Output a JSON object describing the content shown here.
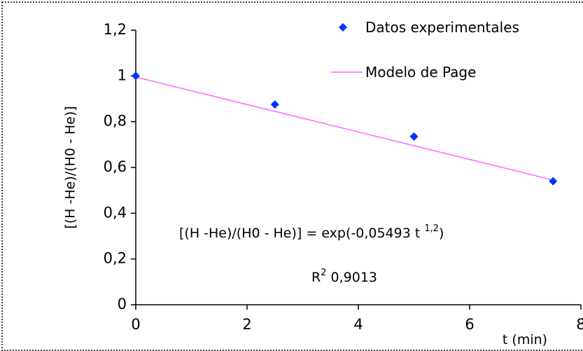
{
  "chart_data": {
    "type": "scatter",
    "xlabel": "t (min)",
    "ylabel": "[(H -He)/(H0 - He)]",
    "xlim": [
      0,
      8
    ],
    "ylim": [
      0,
      1.2
    ],
    "x_ticks": [
      "0",
      "2",
      "4",
      "6",
      "8"
    ],
    "y_ticks": [
      "0",
      "0,2",
      "0,4",
      "0,6",
      "0,8",
      "1",
      "1,2"
    ],
    "series": [
      {
        "name": "Datos experimentales",
        "kind": "scatter",
        "marker": "diamond",
        "color": "#0033ff",
        "x": [
          0,
          2.5,
          5,
          7.5
        ],
        "y": [
          1.0,
          0.875,
          0.735,
          0.54
        ]
      },
      {
        "name": "Modelo de Page",
        "kind": "line",
        "color": "#ff66ff",
        "x": [
          0,
          7.5
        ],
        "y": [
          0.995,
          0.545
        ]
      }
    ],
    "annotations": {
      "equation": {
        "lhs": "[(H -He)/(H0 - He)] = exp(-0,05493 t ",
        "exponent": "1,2",
        "close": ")"
      },
      "r2": {
        "label": "R",
        "sup": "2",
        "value": " 0,9013"
      }
    },
    "legend_position": "top-right",
    "grid": false
  }
}
